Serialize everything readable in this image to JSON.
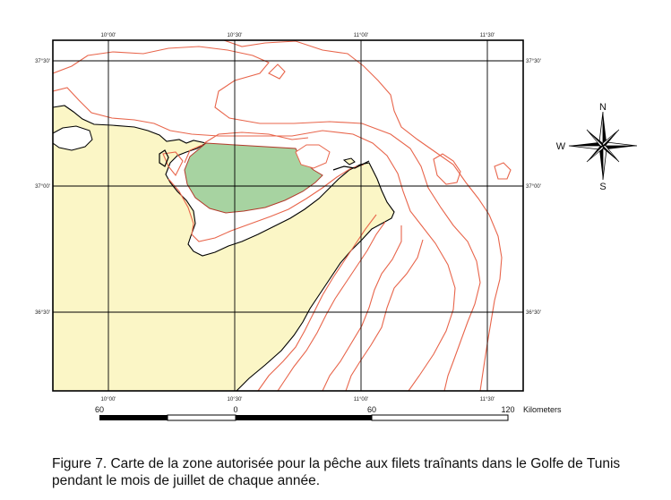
{
  "map": {
    "graticule": {
      "longitudes": [
        "10°00'",
        "10°30'",
        "11°00'",
        "11°30'"
      ],
      "latitudes": [
        "37°30'",
        "37°00'",
        "36°30'"
      ]
    },
    "compass": {
      "north": "N",
      "south": "S",
      "west": "W"
    },
    "scale": {
      "ticks": [
        "60",
        "0",
        "60",
        "120"
      ],
      "unit": "Kilometers"
    },
    "colors": {
      "land": "#fbf6c6",
      "protected_zone": "#a7d3a1",
      "bathymetry": "#e8654b",
      "frame": "#000000"
    }
  },
  "caption": {
    "text": "Figure 7. Carte de la zone autorisée pour la pêche aux filets traînants dans le Golfe de Tunis pendant le mois de juillet de chaque année."
  }
}
